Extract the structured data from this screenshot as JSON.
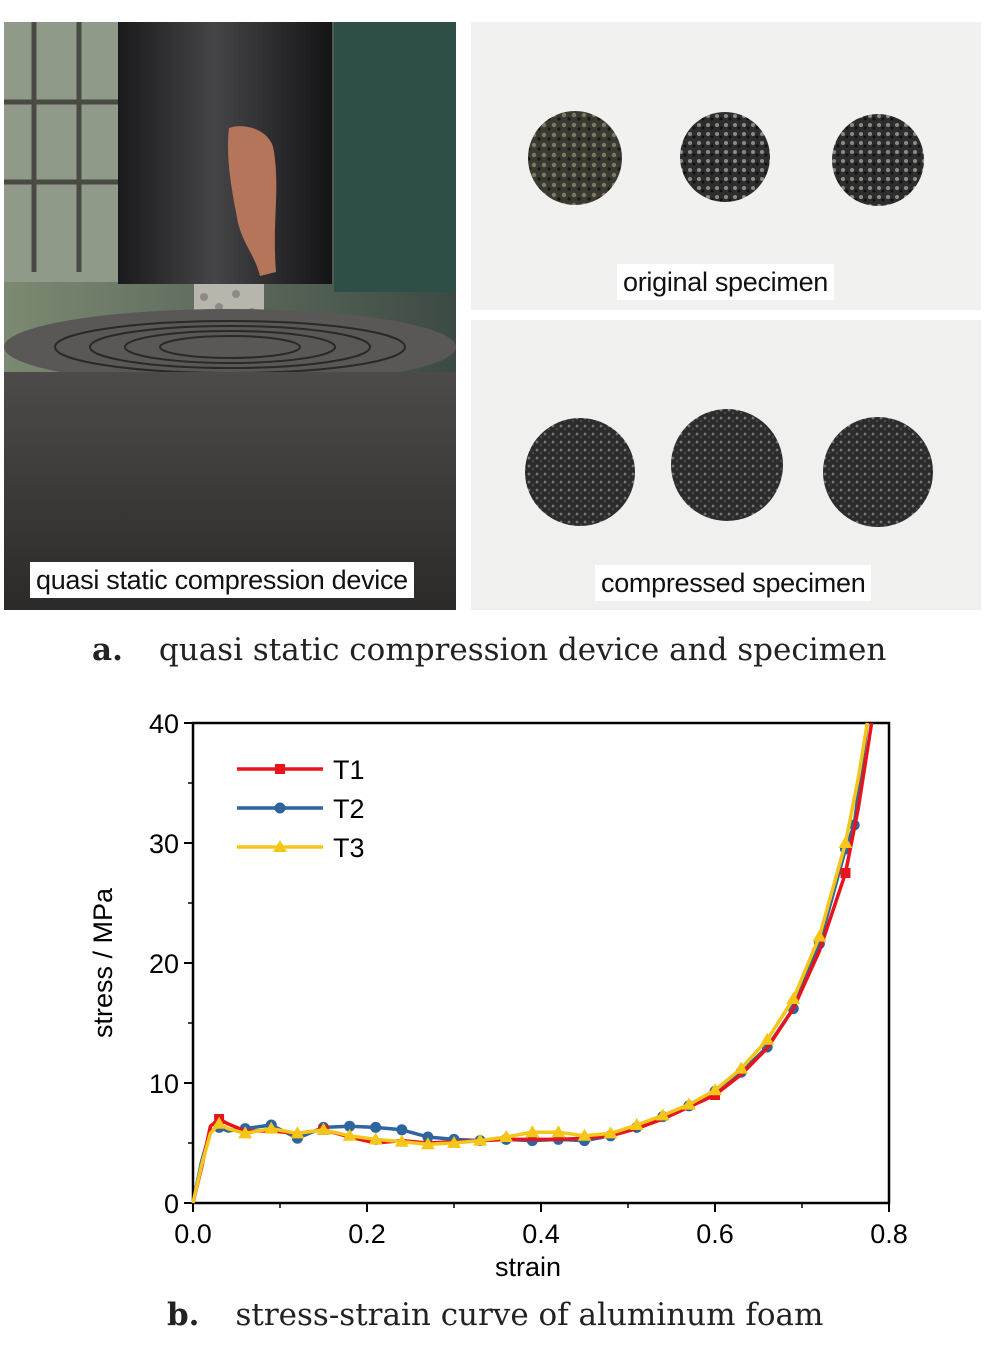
{
  "panel_a": {
    "device_label": "quasi static compression device",
    "original_label": "original specimen",
    "compressed_label": "compressed specimen",
    "caption_letter": "a.",
    "caption_text": "quasi static compression device and specimen"
  },
  "panel_b": {
    "caption_letter": "b.",
    "caption_text": "stress-strain curve of aluminum foam"
  },
  "colors": {
    "T1": "#e8141c",
    "T2": "#2e64a0",
    "T3": "#f5c518"
  },
  "chart_data": {
    "type": "line",
    "xlabel": "strain",
    "ylabel": "stress / MPa",
    "xlim": [
      0,
      0.8
    ],
    "ylim": [
      0,
      40
    ],
    "xticks": [
      "0.0",
      "0.2",
      "0.4",
      "0.6",
      "0.8"
    ],
    "yticks": [
      "0",
      "10",
      "20",
      "30",
      "40"
    ],
    "legend": "top-left",
    "grid": false,
    "series": [
      {
        "name": "T1",
        "marker": "square",
        "points": [
          [
            0,
            0
          ],
          [
            0.01,
            3
          ],
          [
            0.02,
            6.4
          ],
          [
            0.03,
            7.0
          ],
          [
            0.04,
            6.6
          ],
          [
            0.06,
            6.0
          ],
          [
            0.09,
            6.0
          ],
          [
            0.12,
            5.8
          ],
          [
            0.15,
            6.1
          ],
          [
            0.18,
            5.5
          ],
          [
            0.21,
            5.0
          ],
          [
            0.24,
            5.2
          ],
          [
            0.27,
            5.0
          ],
          [
            0.3,
            5.1
          ],
          [
            0.33,
            5.2
          ],
          [
            0.36,
            5.3
          ],
          [
            0.39,
            5.3
          ],
          [
            0.42,
            5.3
          ],
          [
            0.45,
            5.4
          ],
          [
            0.48,
            5.6
          ],
          [
            0.51,
            6.2
          ],
          [
            0.54,
            7.0
          ],
          [
            0.57,
            8.0
          ],
          [
            0.6,
            9.0
          ],
          [
            0.63,
            10.7
          ],
          [
            0.66,
            12.9
          ],
          [
            0.69,
            16.2
          ],
          [
            0.72,
            21.0
          ],
          [
            0.75,
            27.5
          ],
          [
            0.765,
            33.0
          ],
          [
            0.78,
            40
          ]
        ],
        "markers_x": [
          0.03,
          0.15,
          0.6,
          0.75
        ]
      },
      {
        "name": "T2",
        "marker": "circle",
        "points": [
          [
            0,
            0
          ],
          [
            0.01,
            3.5
          ],
          [
            0.02,
            6.0
          ],
          [
            0.03,
            6.3
          ],
          [
            0.04,
            6.0
          ],
          [
            0.06,
            6.2
          ],
          [
            0.09,
            6.5
          ],
          [
            0.12,
            5.4
          ],
          [
            0.15,
            6.3
          ],
          [
            0.18,
            6.4
          ],
          [
            0.21,
            6.3
          ],
          [
            0.24,
            6.1
          ],
          [
            0.27,
            5.5
          ],
          [
            0.3,
            5.3
          ],
          [
            0.33,
            5.2
          ],
          [
            0.36,
            5.3
          ],
          [
            0.39,
            5.2
          ],
          [
            0.42,
            5.3
          ],
          [
            0.45,
            5.2
          ],
          [
            0.48,
            5.6
          ],
          [
            0.51,
            6.3
          ],
          [
            0.54,
            7.2
          ],
          [
            0.57,
            8.1
          ],
          [
            0.6,
            9.3
          ],
          [
            0.63,
            10.9
          ],
          [
            0.66,
            13.0
          ],
          [
            0.69,
            16.2
          ],
          [
            0.72,
            21.6
          ],
          [
            0.75,
            29.5
          ],
          [
            0.76,
            31.5
          ],
          [
            0.775,
            40
          ]
        ],
        "markers_x": [
          0.03,
          0.06,
          0.09,
          0.12,
          0.15,
          0.18,
          0.21,
          0.24,
          0.27,
          0.3,
          0.33,
          0.36,
          0.39,
          0.42,
          0.45,
          0.48,
          0.51,
          0.54,
          0.57,
          0.6,
          0.63,
          0.66,
          0.69,
          0.72,
          0.75,
          0.76
        ]
      },
      {
        "name": "T3",
        "marker": "triangle",
        "points": [
          [
            0,
            0
          ],
          [
            0.01,
            3.2
          ],
          [
            0.02,
            5.8
          ],
          [
            0.03,
            6.6
          ],
          [
            0.04,
            6.2
          ],
          [
            0.06,
            5.8
          ],
          [
            0.09,
            6.2
          ],
          [
            0.12,
            5.8
          ],
          [
            0.15,
            6.1
          ],
          [
            0.18,
            5.6
          ],
          [
            0.21,
            5.3
          ],
          [
            0.24,
            5.1
          ],
          [
            0.27,
            4.9
          ],
          [
            0.3,
            5.0
          ],
          [
            0.33,
            5.2
          ],
          [
            0.36,
            5.5
          ],
          [
            0.39,
            5.9
          ],
          [
            0.42,
            5.9
          ],
          [
            0.45,
            5.6
          ],
          [
            0.48,
            5.8
          ],
          [
            0.51,
            6.5
          ],
          [
            0.54,
            7.3
          ],
          [
            0.57,
            8.2
          ],
          [
            0.6,
            9.4
          ],
          [
            0.63,
            11.2
          ],
          [
            0.66,
            13.6
          ],
          [
            0.69,
            17.0
          ],
          [
            0.72,
            22.2
          ],
          [
            0.75,
            30.0
          ],
          [
            0.765,
            35.5
          ],
          [
            0.775,
            40
          ]
        ],
        "markers_x": [
          0.03,
          0.06,
          0.09,
          0.12,
          0.15,
          0.18,
          0.21,
          0.24,
          0.27,
          0.3,
          0.33,
          0.36,
          0.39,
          0.42,
          0.45,
          0.48,
          0.51,
          0.54,
          0.57,
          0.6,
          0.63,
          0.66,
          0.69,
          0.72,
          0.75
        ]
      }
    ]
  }
}
